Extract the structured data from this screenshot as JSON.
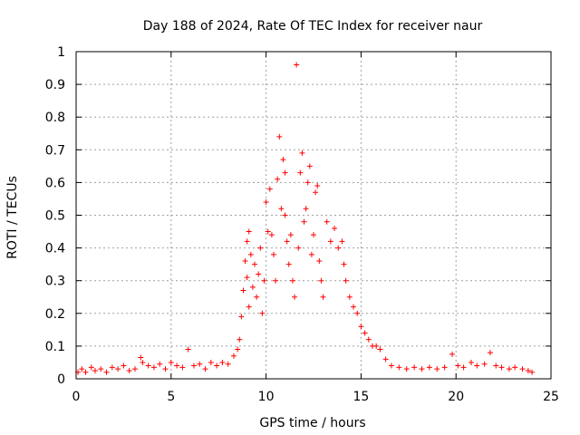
{
  "chart_data": {
    "type": "scatter",
    "title": "Day 188 of 2024, Rate Of TEC Index for receiver naur",
    "xlabel": "GPS time / hours",
    "ylabel": "ROTI / TECUs",
    "xlim": [
      0,
      25
    ],
    "ylim": [
      0,
      1
    ],
    "xticks": [
      0,
      5,
      10,
      15,
      20,
      25
    ],
    "yticks": [
      0,
      0.1,
      0.2,
      0.3,
      0.4,
      0.5,
      0.6,
      0.7,
      0.8,
      0.9,
      1
    ],
    "xtick_labels": [
      "0",
      "5",
      "10",
      "15",
      "20",
      "25"
    ],
    "ytick_labels": [
      "0",
      "0.1",
      "0.2",
      "0.3",
      "0.4",
      "0.5",
      "0.6",
      "0.7",
      "0.8",
      "0.9",
      "1"
    ],
    "grid": true,
    "marker": "+",
    "color": "#ff0000",
    "series": [
      {
        "name": "ROTI",
        "points": [
          [
            0.1,
            0.02
          ],
          [
            0.3,
            0.03
          ],
          [
            0.5,
            0.02
          ],
          [
            0.8,
            0.035
          ],
          [
            1.0,
            0.025
          ],
          [
            1.3,
            0.03
          ],
          [
            1.6,
            0.02
          ],
          [
            1.9,
            0.035
          ],
          [
            2.2,
            0.03
          ],
          [
            2.5,
            0.04
          ],
          [
            2.8,
            0.025
          ],
          [
            3.1,
            0.03
          ],
          [
            3.4,
            0.065
          ],
          [
            3.5,
            0.05
          ],
          [
            3.8,
            0.04
          ],
          [
            4.1,
            0.035
          ],
          [
            4.4,
            0.045
          ],
          [
            4.7,
            0.03
          ],
          [
            5.0,
            0.05
          ],
          [
            5.3,
            0.04
          ],
          [
            5.6,
            0.035
          ],
          [
            5.9,
            0.09
          ],
          [
            6.2,
            0.04
          ],
          [
            6.5,
            0.045
          ],
          [
            6.8,
            0.03
          ],
          [
            7.1,
            0.05
          ],
          [
            7.4,
            0.04
          ],
          [
            7.7,
            0.05
          ],
          [
            8.0,
            0.045
          ],
          [
            8.3,
            0.07
          ],
          [
            8.5,
            0.09
          ],
          [
            8.6,
            0.12
          ],
          [
            8.7,
            0.19
          ],
          [
            8.8,
            0.27
          ],
          [
            8.9,
            0.36
          ],
          [
            9.0,
            0.42
          ],
          [
            9.0,
            0.31
          ],
          [
            9.1,
            0.45
          ],
          [
            9.1,
            0.22
          ],
          [
            9.2,
            0.38
          ],
          [
            9.3,
            0.28
          ],
          [
            9.4,
            0.35
          ],
          [
            9.5,
            0.25
          ],
          [
            9.6,
            0.32
          ],
          [
            9.7,
            0.4
          ],
          [
            9.8,
            0.2
          ],
          [
            9.9,
            0.3
          ],
          [
            10.0,
            0.54
          ],
          [
            10.1,
            0.45
          ],
          [
            10.2,
            0.58
          ],
          [
            10.3,
            0.44
          ],
          [
            10.4,
            0.38
          ],
          [
            10.5,
            0.3
          ],
          [
            10.6,
            0.61
          ],
          [
            10.7,
            0.74
          ],
          [
            10.8,
            0.52
          ],
          [
            10.9,
            0.67
          ],
          [
            11.0,
            0.5
          ],
          [
            11.0,
            0.63
          ],
          [
            11.1,
            0.42
          ],
          [
            11.2,
            0.35
          ],
          [
            11.3,
            0.44
          ],
          [
            11.4,
            0.3
          ],
          [
            11.5,
            0.25
          ],
          [
            11.6,
            0.96
          ],
          [
            11.7,
            0.4
          ],
          [
            11.8,
            0.63
          ],
          [
            11.9,
            0.69
          ],
          [
            12.0,
            0.48
          ],
          [
            12.1,
            0.52
          ],
          [
            12.2,
            0.6
          ],
          [
            12.3,
            0.65
          ],
          [
            12.4,
            0.38
          ],
          [
            12.5,
            0.44
          ],
          [
            12.6,
            0.57
          ],
          [
            12.7,
            0.59
          ],
          [
            12.8,
            0.36
          ],
          [
            12.9,
            0.3
          ],
          [
            13.0,
            0.25
          ],
          [
            13.2,
            0.48
          ],
          [
            13.4,
            0.42
          ],
          [
            13.6,
            0.46
          ],
          [
            13.8,
            0.4
          ],
          [
            14.0,
            0.42
          ],
          [
            14.1,
            0.35
          ],
          [
            14.2,
            0.3
          ],
          [
            14.4,
            0.25
          ],
          [
            14.6,
            0.22
          ],
          [
            14.8,
            0.2
          ],
          [
            15.0,
            0.16
          ],
          [
            15.2,
            0.14
          ],
          [
            15.4,
            0.12
          ],
          [
            15.6,
            0.1
          ],
          [
            15.8,
            0.1
          ],
          [
            16.0,
            0.09
          ],
          [
            16.3,
            0.06
          ],
          [
            16.6,
            0.04
          ],
          [
            17.0,
            0.035
          ],
          [
            17.4,
            0.03
          ],
          [
            17.8,
            0.035
          ],
          [
            18.2,
            0.03
          ],
          [
            18.6,
            0.035
          ],
          [
            19.0,
            0.03
          ],
          [
            19.4,
            0.035
          ],
          [
            19.8,
            0.075
          ],
          [
            20.1,
            0.04
          ],
          [
            20.4,
            0.035
          ],
          [
            20.8,
            0.05
          ],
          [
            21.1,
            0.04
          ],
          [
            21.5,
            0.045
          ],
          [
            21.8,
            0.08
          ],
          [
            22.1,
            0.04
          ],
          [
            22.4,
            0.035
          ],
          [
            22.8,
            0.03
          ],
          [
            23.1,
            0.035
          ],
          [
            23.5,
            0.03
          ],
          [
            23.8,
            0.025
          ],
          [
            24.0,
            0.02
          ]
        ]
      }
    ]
  }
}
